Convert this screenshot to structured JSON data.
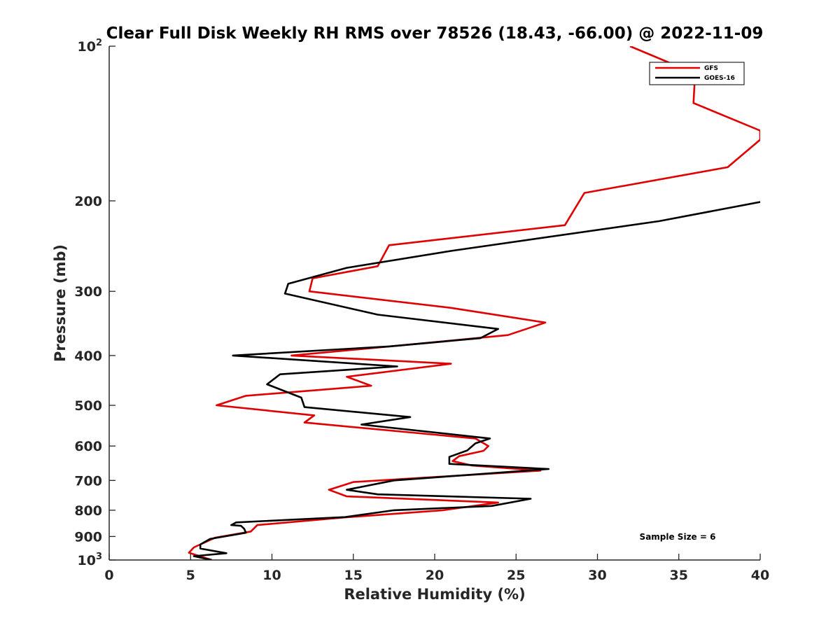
{
  "chart_data": {
    "type": "line",
    "title": "Clear Full Disk Weekly RH RMS over 78526 (18.43, -66.00) @ 2022-11-09",
    "xlabel": "Relative Humidity (%)",
    "ylabel": "Pressure (mb)",
    "xlim": [
      0,
      40
    ],
    "ylim": [
      100,
      1000
    ],
    "y_scale": "log",
    "y_reversed": true,
    "grid": false,
    "legend_position": "top-right",
    "annotation": "Sample Size = 6",
    "x_ticks": [
      "0",
      "5",
      "10",
      "15",
      "20",
      "25",
      "30",
      "35",
      "40"
    ],
    "y_ticks": [
      {
        "value": 100,
        "base": "10",
        "exp": "2"
      },
      {
        "value": 200,
        "base": "200",
        "exp": ""
      },
      {
        "value": 300,
        "base": "300",
        "exp": ""
      },
      {
        "value": 400,
        "base": "400",
        "exp": ""
      },
      {
        "value": 500,
        "base": "500",
        "exp": ""
      },
      {
        "value": 600,
        "base": "600",
        "exp": ""
      },
      {
        "value": 700,
        "base": "700",
        "exp": ""
      },
      {
        "value": 800,
        "base": "800",
        "exp": ""
      },
      {
        "value": 900,
        "base": "900",
        "exp": ""
      },
      {
        "value": 1000,
        "base": "10",
        "exp": "3"
      }
    ],
    "series": [
      {
        "name": "GFS",
        "color": "#e00000",
        "points": [
          [
            32.0,
            100
          ],
          [
            36.0,
            113
          ],
          [
            35.9,
            129
          ],
          [
            40.0,
            146
          ],
          [
            40.0,
            152
          ],
          [
            38.0,
            172
          ],
          [
            29.2,
            193
          ],
          [
            28.0,
            223
          ],
          [
            17.2,
            244
          ],
          [
            16.5,
            268
          ],
          [
            12.5,
            283
          ],
          [
            12.3,
            300
          ],
          [
            21.0,
            323
          ],
          [
            26.8,
            345
          ],
          [
            24.5,
            365
          ],
          [
            18.0,
            382
          ],
          [
            11.2,
            400
          ],
          [
            21.0,
            415
          ],
          [
            14.6,
            440
          ],
          [
            16.1,
            458
          ],
          [
            8.4,
            479
          ],
          [
            6.6,
            500
          ],
          [
            12.6,
            523
          ],
          [
            12.0,
            540
          ],
          [
            22.5,
            580
          ],
          [
            23.3,
            600
          ],
          [
            23.0,
            613
          ],
          [
            21.5,
            628
          ],
          [
            21.1,
            642
          ],
          [
            22.3,
            655
          ],
          [
            26.5,
            670
          ],
          [
            15.0,
            705
          ],
          [
            13.5,
            730
          ],
          [
            14.6,
            752
          ],
          [
            23.9,
            773
          ],
          [
            20.5,
            800
          ],
          [
            14.5,
            826
          ],
          [
            9.1,
            855
          ],
          [
            8.7,
            880
          ],
          [
            6.5,
            905
          ],
          [
            5.2,
            945
          ],
          [
            4.9,
            968
          ],
          [
            6.3,
            1000
          ]
        ]
      },
      {
        "name": "GOES-16",
        "color": "#000000",
        "points": [
          [
            40.0,
            201
          ],
          [
            33.8,
            219
          ],
          [
            21.1,
            250
          ],
          [
            14.6,
            270
          ],
          [
            11.0,
            290
          ],
          [
            10.8,
            303
          ],
          [
            16.5,
            333
          ],
          [
            23.9,
            355
          ],
          [
            22.8,
            370
          ],
          [
            17.2,
            384
          ],
          [
            7.6,
            400
          ],
          [
            17.7,
            420
          ],
          [
            10.5,
            435
          ],
          [
            9.7,
            455
          ],
          [
            11.8,
            483
          ],
          [
            12.0,
            504
          ],
          [
            18.5,
            527
          ],
          [
            15.5,
            545
          ],
          [
            23.4,
            580
          ],
          [
            22.5,
            593
          ],
          [
            22.0,
            612
          ],
          [
            20.9,
            630
          ],
          [
            20.9,
            650
          ],
          [
            27.0,
            665
          ],
          [
            17.5,
            700
          ],
          [
            14.6,
            730
          ],
          [
            16.5,
            745
          ],
          [
            25.9,
            760
          ],
          [
            23.5,
            785
          ],
          [
            17.5,
            800
          ],
          [
            14.5,
            825
          ],
          [
            7.8,
            845
          ],
          [
            7.5,
            855
          ],
          [
            8.1,
            858
          ],
          [
            8.3,
            870
          ],
          [
            8.4,
            885
          ],
          [
            6.2,
            910
          ],
          [
            5.6,
            933
          ],
          [
            5.6,
            950
          ],
          [
            7.2,
            970
          ],
          [
            5.2,
            983
          ],
          [
            6.3,
            1000
          ]
        ]
      }
    ]
  }
}
